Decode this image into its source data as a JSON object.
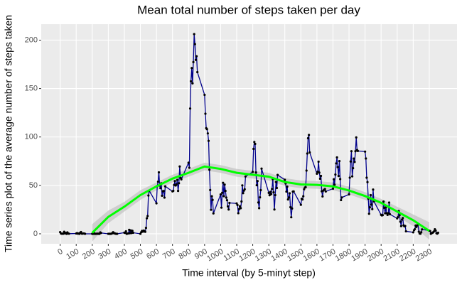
{
  "chart_data": {
    "type": "line",
    "title": "Mean total number of steps taken per day",
    "x_label": "Time interval (by 5-minyt step)",
    "y_label": "Time series plot of the average number of steps taken",
    "xlim": [
      -118,
      2473
    ],
    "ylim": [
      -10.3,
      216.5
    ],
    "xticks": [
      0,
      100,
      200,
      300,
      400,
      500,
      600,
      700,
      800,
      900,
      1000,
      1100,
      1200,
      1300,
      1400,
      1500,
      1600,
      1700,
      1800,
      1900,
      2000,
      2100,
      2200,
      2300
    ],
    "yticks": [
      0,
      50,
      100,
      150,
      200
    ],
    "grid": true,
    "x": [
      0,
      5,
      10,
      15,
      20,
      25,
      30,
      35,
      40,
      45,
      50,
      55,
      100,
      105,
      110,
      115,
      120,
      125,
      130,
      135,
      140,
      145,
      150,
      155,
      200,
      205,
      210,
      215,
      220,
      225,
      230,
      235,
      240,
      245,
      250,
      255,
      300,
      305,
      310,
      315,
      320,
      325,
      330,
      335,
      340,
      345,
      350,
      355,
      400,
      405,
      410,
      415,
      420,
      425,
      430,
      435,
      440,
      445,
      450,
      455,
      500,
      505,
      510,
      515,
      520,
      525,
      530,
      535,
      540,
      545,
      550,
      555,
      600,
      605,
      610,
      615,
      620,
      625,
      630,
      635,
      640,
      645,
      650,
      655,
      700,
      705,
      710,
      715,
      720,
      725,
      730,
      735,
      740,
      745,
      750,
      755,
      800,
      805,
      810,
      815,
      820,
      825,
      830,
      835,
      840,
      845,
      850,
      855,
      900,
      905,
      910,
      915,
      920,
      925,
      930,
      935,
      940,
      945,
      950,
      955,
      1000,
      1005,
      1010,
      1015,
      1020,
      1025,
      1030,
      1035,
      1040,
      1045,
      1050,
      1055,
      1100,
      1105,
      1110,
      1115,
      1120,
      1125,
      1130,
      1135,
      1140,
      1145,
      1150,
      1155,
      1200,
      1205,
      1210,
      1215,
      1220,
      1225,
      1230,
      1235,
      1240,
      1245,
      1250,
      1255,
      1300,
      1305,
      1310,
      1315,
      1320,
      1325,
      1330,
      1335,
      1340,
      1345,
      1350,
      1355,
      1400,
      1405,
      1410,
      1415,
      1420,
      1425,
      1430,
      1435,
      1440,
      1445,
      1450,
      1455,
      1500,
      1505,
      1510,
      1515,
      1520,
      1525,
      1530,
      1535,
      1540,
      1545,
      1550,
      1555,
      1600,
      1605,
      1610,
      1615,
      1620,
      1625,
      1630,
      1635,
      1640,
      1645,
      1650,
      1655,
      1700,
      1705,
      1710,
      1715,
      1720,
      1725,
      1730,
      1735,
      1740,
      1745,
      1750,
      1755,
      1800,
      1805,
      1810,
      1815,
      1820,
      1825,
      1830,
      1835,
      1840,
      1845,
      1850,
      1855,
      1900,
      1905,
      1910,
      1915,
      1920,
      1925,
      1930,
      1935,
      1940,
      1945,
      1950,
      1955,
      2000,
      2005,
      2010,
      2015,
      2020,
      2025,
      2030,
      2035,
      2040,
      2045,
      2050,
      2055,
      2100,
      2105,
      2110,
      2115,
      2120,
      2125,
      2130,
      2135,
      2140,
      2145,
      2150,
      2155,
      2200,
      2205,
      2210,
      2215,
      2220,
      2225,
      2230,
      2235,
      2240,
      2245,
      2250,
      2255,
      2300,
      2305,
      2310,
      2315,
      2320,
      2325,
      2330,
      2335,
      2340,
      2345,
      2350,
      2355
    ],
    "series": [
      {
        "color": "#00008b",
        "point_color": "#000000",
        "values": [
          1.7,
          0.3,
          0.1,
          0.2,
          0.1,
          2.1,
          0.5,
          0.9,
          0,
          1.5,
          0.3,
          0.1,
          0.3,
          0.7,
          0.2,
          0.3,
          0,
          1.1,
          1.8,
          0.2,
          0.2,
          0.4,
          0.3,
          0,
          0,
          0,
          1.1,
          0,
          0,
          0.1,
          0,
          0.2,
          0,
          0,
          1.5,
          0.9,
          0,
          0,
          0,
          0,
          0.2,
          0.6,
          1.6,
          0.6,
          0.5,
          0.1,
          0,
          0,
          1.2,
          0.9,
          2.6,
          0,
          0.3,
          0.4,
          4.1,
          0.7,
          3.5,
          0.8,
          3.1,
          1.1,
          0,
          1.6,
          3,
          2.2,
          3.3,
          3,
          2.1,
          6.1,
          16,
          18.3,
          39.5,
          44.5,
          31.5,
          49.3,
          53.8,
          63.5,
          50,
          47.1,
          52.2,
          39.3,
          44,
          44.2,
          37.4,
          49,
          43.8,
          44.4,
          50.5,
          54.5,
          49.9,
          51,
          55.7,
          44.3,
          52.3,
          69.5,
          57.8,
          56.2,
          73.4,
          68.2,
          129.4,
          157.5,
          171.2,
          155.4,
          177.3,
          206.2,
          195.9,
          179.6,
          183.4,
          167,
          143.5,
          124,
          109.1,
          108.1,
          103.7,
          96,
          66.2,
          45.2,
          24.8,
          38.8,
          35,
          21.1,
          40.6,
          27,
          42.4,
          52.7,
          38.9,
          50.8,
          44.3,
          37.4,
          34.7,
          28.3,
          25.1,
          31.9,
          31.4,
          29.7,
          21.3,
          25.5,
          28.4,
          26.5,
          33.4,
          50,
          42,
          44.6,
          46,
          59.2,
          63.9,
          87.7,
          94.8,
          92.8,
          63.4,
          50.2,
          54.5,
          32.4,
          26.5,
          37.7,
          45.1,
          67.3,
          42.3,
          39.9,
          43.3,
          41,
          46.2,
          56.4,
          42.8,
          25.1,
          40,
          53.5,
          47.3,
          60.8,
          55.8,
          52,
          43.6,
          48.7,
          35.5,
          37.5,
          41.8,
          27.5,
          17.1,
          26.1,
          43.6,
          43.8,
          30,
          36.1,
          35.5,
          38.8,
          46,
          47.8,
          48.1,
          65.3,
          82.9,
          98.7,
          102.1,
          84,
          62.1,
          64.1,
          74.5,
          63.2,
          56.9,
          59.8,
          43.9,
          38.6,
          44.7,
          45.5,
          46.2,
          43.7,
          46.6,
          56.3,
          50.7,
          61.2,
          72.7,
          78.9,
          68.9,
          59.7,
          75.1,
          56.5,
          34.8,
          37.5,
          40.7,
          58,
          74.7,
          85.3,
          59.3,
          67.8,
          77.7,
          74.2,
          85.3,
          99.5,
          86.6,
          85.6,
          84.9,
          77.8,
          58,
          53.4,
          36.3,
          20.7,
          27.4,
          40,
          30.2,
          25.5,
          45.7,
          33.5,
          19.6,
          19,
          19.3,
          33.3,
          26.8,
          21.2,
          27.3,
          21.3,
          19.5,
          21.3,
          32.3,
          20.2,
          15.9,
          17.2,
          23.5,
          19.2,
          12.5,
          8,
          14.7,
          16.3,
          8.7,
          7.8,
          8.1,
          2.6,
          1.5,
          3.7,
          4.8,
          8.5,
          7.1,
          8.7,
          9.8,
          2.2,
          0.3,
          0.1,
          1.6,
          4.6,
          3.3,
          2.8,
          0,
          0.8,
          1,
          1.6,
          2.6,
          4.7,
          3.3,
          0.6,
          0.2,
          1.1
        ]
      }
    ],
    "smooth": {
      "color": "#00ff00",
      "band_color": "#c4c4c4",
      "x": [
        200,
        300,
        400,
        500,
        600,
        700,
        800,
        900,
        1000,
        1100,
        1200,
        1300,
        1400,
        1500,
        1600,
        1700,
        1800,
        1900,
        2000,
        2100,
        2200,
        2300
      ],
      "values": [
        1,
        17.5,
        28,
        40,
        49,
        57,
        63,
        69.5,
        67,
        63,
        61,
        59,
        53.5,
        51,
        50.5,
        49,
        44.7,
        39,
        32,
        23,
        14,
        3
      ],
      "lower": [
        -8,
        11,
        23,
        35,
        45,
        53,
        59,
        65.5,
        63,
        59,
        57,
        55,
        49.5,
        47,
        46.5,
        45,
        40.7,
        35,
        28,
        18,
        8,
        -6
      ],
      "upper": [
        10,
        24,
        33,
        45,
        53,
        61,
        67,
        73.5,
        71,
        67,
        65,
        63,
        57.5,
        55,
        54.5,
        53,
        48.7,
        43,
        36,
        28,
        20,
        12
      ]
    }
  }
}
